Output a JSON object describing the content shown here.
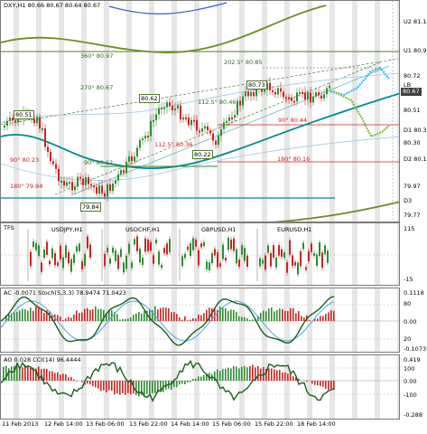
{
  "main": {
    "title": "DXY,H1  80.66 80.67 80.64 80.67",
    "axis": [
      {
        "label": "U2",
        "value": "81.14"
      },
      {
        "label": "U1",
        "value": "80.93"
      },
      {
        "label": "",
        "value": "80.72"
      },
      {
        "label": "LB",
        "value": "80.67"
      },
      {
        "label": "",
        "value": "80.51"
      },
      {
        "label": "D1",
        "value": "80.37"
      },
      {
        "label": "",
        "value": "80.30"
      },
      {
        "label": "D2",
        "value": "80.18"
      },
      {
        "label": "",
        "value": "79.97"
      },
      {
        "label": "D3",
        "value": "79.87"
      },
      {
        "label": "",
        "value": "79.77"
      }
    ],
    "price_badge": "80.67",
    "annotations": {
      "a1": "360° 80.97",
      "a2": "202.5° 80.85",
      "a3": "270° 80.67",
      "a4": "112.5° 80.36",
      "a5": "90° 80.12",
      "a6": "90° 80.23",
      "a7": "180° 79.94",
      "a8": "112.5° 80.46",
      "a9": "90° 80.44",
      "a10": "180° 80.16"
    },
    "boxes": {
      "b1": "80.51",
      "b2": "80.62",
      "b3": "80.73",
      "b4": "80.22",
      "b5": "79.84"
    }
  },
  "tfs": {
    "title": "TFS",
    "pairs": [
      "USDJPY,H1",
      "USDCHF,H1",
      "GBPUSD,H1",
      "EURUSD,H1"
    ],
    "axis": [
      "115",
      "-15"
    ]
  },
  "ac": {
    "title": "AC -0.0071  Stoch(5,3,3) 78.9474 71.0423",
    "axis": [
      "0.1118",
      "80",
      "0.00",
      "20",
      "-0.1073"
    ]
  },
  "ao": {
    "title": "AO 0.028  CCI(14) 96.4444",
    "axis": [
      "0.419",
      "100",
      "0.00",
      "-100",
      "-0.288"
    ]
  },
  "xaxis": [
    "11 Feb 2013",
    "12 Feb 14:00",
    "13 Feb 06:00",
    "13 Feb 22:00",
    "14 Feb 14:00",
    "15 Feb 06:00",
    "15 Feb 22:00",
    "18 Feb 14:00"
  ],
  "colors": {
    "bull": "#2e8b2e",
    "bear": "#cc2222",
    "ma_green": "#6b8e23",
    "ma_teal": "#008b8b",
    "ma_blue": "#3b5bd6",
    "forecast_cyan": "#33bbee"
  }
}
